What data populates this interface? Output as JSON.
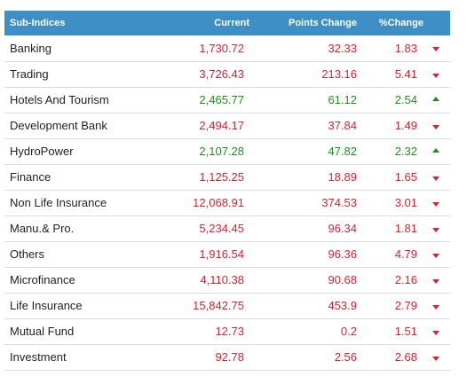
{
  "headers": {
    "name": "Sub-Indices",
    "current": "Current",
    "points": "Points Change",
    "percent": "%Change"
  },
  "colors": {
    "header_bg": "#3d8fc6",
    "down": "#e0212b",
    "up": "#1e8f1e"
  },
  "rows": [
    {
      "name": "Banking",
      "current": "1,730.72",
      "points": "32.33",
      "percent": "1.83",
      "trend": "down"
    },
    {
      "name": "Trading",
      "current": "3,726.43",
      "points": "213.16",
      "percent": "5.41",
      "trend": "down"
    },
    {
      "name": "Hotels And Tourism",
      "current": "2,465.77",
      "points": "61.12",
      "percent": "2.54",
      "trend": "up"
    },
    {
      "name": "Development Bank",
      "current": "2,494.17",
      "points": "37.84",
      "percent": "1.49",
      "trend": "down"
    },
    {
      "name": "HydroPower",
      "current": "2,107.28",
      "points": "47.82",
      "percent": "2.32",
      "trend": "up"
    },
    {
      "name": "Finance",
      "current": "1,125.25",
      "points": "18.89",
      "percent": "1.65",
      "trend": "down"
    },
    {
      "name": "Non Life Insurance",
      "current": "12,068.91",
      "points": "374.53",
      "percent": "3.01",
      "trend": "down"
    },
    {
      "name": "Manu.& Pro.",
      "current": "5,234.45",
      "points": "96.34",
      "percent": "1.81",
      "trend": "down"
    },
    {
      "name": "Others",
      "current": "1,916.54",
      "points": "96.36",
      "percent": "4.79",
      "trend": "down"
    },
    {
      "name": "Microfinance",
      "current": "4,110.38",
      "points": "90.68",
      "percent": "2.16",
      "trend": "down"
    },
    {
      "name": "Life Insurance",
      "current": "15,842.75",
      "points": "453.9",
      "percent": "2.79",
      "trend": "down"
    },
    {
      "name": "Mutual Fund",
      "current": "12.73",
      "points": "0.2",
      "percent": "1.51",
      "trend": "down"
    },
    {
      "name": "Investment",
      "current": "92.78",
      "points": "2.56",
      "percent": "2.68",
      "trend": "down"
    }
  ]
}
